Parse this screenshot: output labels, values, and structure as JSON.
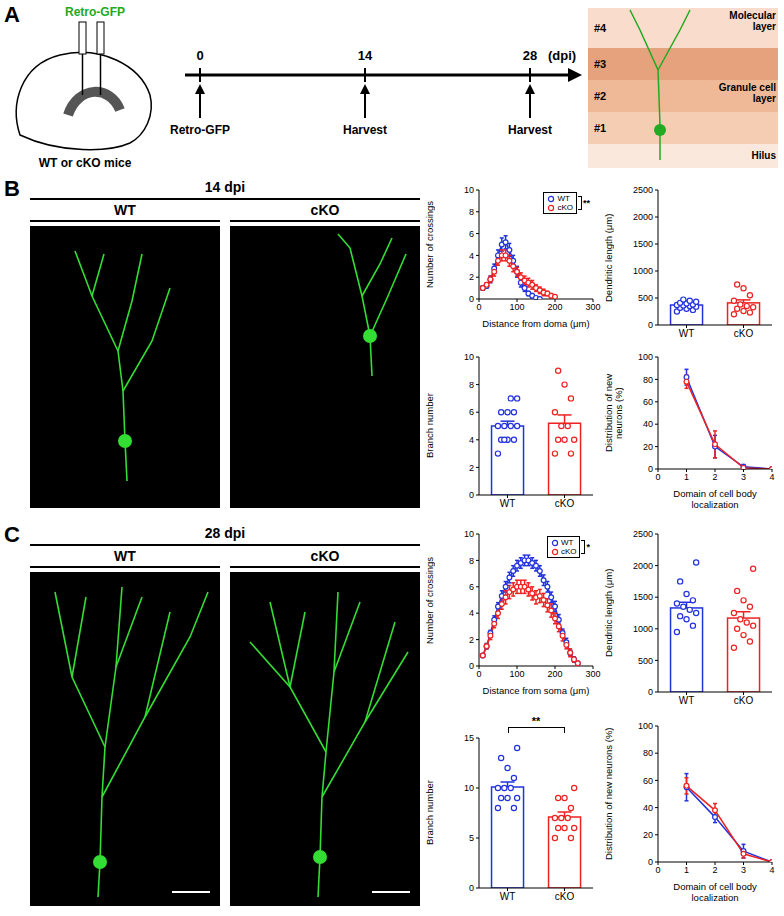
{
  "chart_data": [
    {
      "type": "line",
      "x_label": "Distance from doma (μm)",
      "y_label": "Number of crossings",
      "x": [
        10,
        20,
        30,
        40,
        50,
        60,
        70,
        80,
        90,
        100,
        110,
        120,
        130,
        140,
        150,
        160,
        170,
        180,
        190,
        200
      ],
      "xlim": [
        0,
        300
      ],
      "xticks": [
        0,
        100,
        200,
        300
      ],
      "ylim": [
        0,
        10
      ],
      "yticks": [
        0,
        2,
        4,
        6,
        8,
        10
      ],
      "legend": "top-right",
      "significance": "**",
      "series": [
        {
          "name": "WT",
          "color": "#2233dd",
          "marker": "circle",
          "values": [
            1,
            1.2,
            1.8,
            2.8,
            4,
            5,
            5.2,
            4.5,
            3.5,
            2.5,
            1.5,
            1,
            0.5,
            0.3,
            0.1,
            0,
            null,
            null,
            null,
            null
          ],
          "errors": [
            0.2,
            0.2,
            0.3,
            0.4,
            0.5,
            0.6,
            0.6,
            0.6,
            0.5,
            0.5,
            0.4,
            0.3,
            0.2,
            0.2,
            0.1,
            0,
            null,
            null,
            null,
            null
          ]
        },
        {
          "name": "cKO",
          "color": "#ee2222",
          "marker": "circle",
          "values": [
            1,
            1.3,
            1.8,
            2.5,
            3.5,
            4,
            4,
            3.5,
            3,
            2.5,
            2,
            1.7,
            1.5,
            1.3,
            1,
            0.8,
            0.6,
            0.5,
            0.3,
            0.2
          ],
          "errors": [
            0.2,
            0.2,
            0.3,
            0.4,
            0.4,
            0.5,
            0.5,
            0.5,
            0.5,
            0.4,
            0.4,
            0.4,
            0.4,
            0.4,
            0.3,
            0.3,
            0.3,
            0.2,
            0.2,
            0.1
          ]
        }
      ]
    },
    {
      "type": "bar",
      "y_label": "Dendritic length (μm)",
      "categories": [
        "WT",
        "cKO"
      ],
      "values": [
        370,
        410
      ],
      "errors": [
        25,
        55
      ],
      "points": [
        [
          250,
          280,
          300,
          320,
          340,
          350,
          360,
          370,
          380,
          400,
          410,
          430,
          450,
          470
        ],
        [
          200,
          230,
          260,
          300,
          330,
          350,
          380,
          450,
          550,
          680,
          750
        ]
      ],
      "colors": [
        "#2233dd",
        "#ee2222"
      ],
      "ylim": [
        0,
        2500
      ],
      "yticks": [
        0,
        500,
        1000,
        1500,
        2000,
        2500
      ]
    },
    {
      "type": "bar",
      "y_label": "Branch number",
      "categories": [
        "WT",
        "cKO"
      ],
      "values": [
        5,
        5.2
      ],
      "errors": [
        0.35,
        0.6
      ],
      "points": [
        [
          3,
          4,
          4,
          4,
          5,
          5,
          5,
          5,
          6,
          6,
          6,
          7,
          7,
          4
        ],
        [
          3,
          3,
          4,
          4,
          4,
          5,
          5,
          6,
          7,
          8,
          9
        ]
      ],
      "colors": [
        "#2233dd",
        "#ee2222"
      ],
      "ylim": [
        0,
        10
      ],
      "yticks": [
        0,
        2,
        4,
        6,
        8,
        10
      ]
    },
    {
      "type": "line",
      "x_label": "Domain of cell body localization",
      "y_label": "Distribution of new neurons (%)",
      "x": [
        1,
        2,
        3,
        4
      ],
      "xlim": [
        0,
        4
      ],
      "xticks": [
        0,
        1,
        2,
        3,
        4
      ],
      "ylim": [
        0,
        100
      ],
      "yticks": [
        0,
        20,
        40,
        60,
        80,
        100
      ],
      "series": [
        {
          "name": "WT",
          "color": "#2233dd",
          "marker": "circle",
          "values": [
            82,
            20,
            2,
            0
          ],
          "errors": [
            7,
            10,
            2,
            0
          ]
        },
        {
          "name": "cKO",
          "color": "#ee2222",
          "marker": "circle",
          "values": [
            78,
            22,
            1,
            0
          ],
          "errors": [
            6,
            12,
            1,
            0
          ]
        }
      ]
    },
    {
      "type": "line",
      "x_label": "Distance from soma (μm)",
      "y_label": "Number of crossings",
      "x": [
        10,
        20,
        30,
        40,
        50,
        60,
        70,
        80,
        90,
        100,
        110,
        120,
        130,
        140,
        150,
        160,
        170,
        180,
        190,
        200,
        210,
        220,
        230,
        240,
        250,
        260
      ],
      "xlim": [
        0,
        300
      ],
      "xticks": [
        0,
        100,
        200,
        300
      ],
      "ylim": [
        0,
        10
      ],
      "yticks": [
        0,
        2,
        4,
        6,
        8,
        10
      ],
      "legend": "top-right",
      "significance": "*",
      "series": [
        {
          "name": "WT",
          "color": "#2233dd",
          "marker": "circle",
          "values": [
            0.8,
            1.5,
            2.5,
            3.5,
            4.5,
            5.3,
            6,
            6.7,
            7.2,
            7.6,
            7.8,
            8,
            8,
            7.8,
            7.6,
            7.2,
            6.5,
            6,
            5.2,
            4.5,
            3.5,
            2.5,
            1.8,
            1,
            0.5,
            0.2
          ],
          "errors": [
            0.1,
            0.2,
            0.2,
            0.3,
            0.3,
            0.4,
            0.4,
            0.4,
            0.4,
            0.4,
            0.4,
            0.4,
            0.4,
            0.4,
            0.4,
            0.4,
            0.4,
            0.4,
            0.4,
            0.4,
            0.4,
            0.3,
            0.3,
            0.2,
            0.2,
            0.1
          ]
        },
        {
          "name": "cKO",
          "color": "#ee2222",
          "marker": "circle",
          "values": [
            0.8,
            1.5,
            2.3,
            3.2,
            4,
            4.7,
            5.2,
            5.6,
            5.8,
            6,
            6,
            6,
            5.8,
            5.5,
            5.2,
            5.3,
            5,
            4.6,
            4.2,
            3.6,
            3,
            2.3,
            1.6,
            1,
            0.5,
            0.2
          ],
          "errors": [
            0.1,
            0.2,
            0.3,
            0.3,
            0.4,
            0.4,
            0.5,
            0.5,
            0.5,
            0.5,
            0.5,
            0.5,
            0.5,
            0.5,
            0.5,
            0.5,
            0.5,
            0.5,
            0.5,
            0.4,
            0.4,
            0.4,
            0.3,
            0.3,
            0.2,
            0.1
          ]
        }
      ]
    },
    {
      "type": "bar",
      "y_label": "Dendritic length (μm)",
      "categories": [
        "WT",
        "cKO"
      ],
      "values": [
        1330,
        1170
      ],
      "errors": [
        90,
        100
      ],
      "points": [
        [
          950,
          1050,
          1150,
          1200,
          1250,
          1300,
          1350,
          1400,
          1450,
          1550,
          1750,
          2050
        ],
        [
          700,
          800,
          900,
          1000,
          1050,
          1100,
          1150,
          1250,
          1350,
          1450,
          1600,
          1950
        ]
      ],
      "colors": [
        "#2233dd",
        "#ee2222"
      ],
      "ylim": [
        0,
        2500
      ],
      "yticks": [
        0,
        500,
        1000,
        1500,
        2000,
        2500
      ]
    },
    {
      "type": "bar",
      "y_label": "Branch number",
      "categories": [
        "WT",
        "cKO"
      ],
      "values": [
        10.1,
        7.1
      ],
      "errors": [
        0.5,
        0.5
      ],
      "points": [
        [
          8,
          8,
          9,
          9,
          9,
          10,
          10,
          10,
          11,
          12,
          13,
          14
        ],
        [
          5,
          5,
          6,
          6,
          6,
          7,
          7,
          7,
          8,
          9,
          9,
          10
        ]
      ],
      "colors": [
        "#2233dd",
        "#ee2222"
      ],
      "ylim": [
        0,
        15
      ],
      "yticks": [
        0,
        5,
        10,
        15
      ],
      "significance": "**"
    },
    {
      "type": "line",
      "x_label": "Domain of cell body localization",
      "y_label": "Distribution of new neurons (%)",
      "x": [
        1,
        2,
        3,
        4
      ],
      "xlim": [
        0,
        4
      ],
      "xticks": [
        0,
        1,
        2,
        3,
        4
      ],
      "ylim": [
        0,
        100
      ],
      "yticks": [
        0,
        20,
        40,
        60,
        80,
        100
      ],
      "series": [
        {
          "name": "WT",
          "color": "#2233dd",
          "marker": "circle",
          "values": [
            55,
            33,
            8,
            0
          ],
          "errors": [
            10,
            4,
            5,
            0
          ]
        },
        {
          "name": "cKO",
          "color": "#ee2222",
          "marker": "circle",
          "values": [
            56,
            38,
            6,
            0
          ],
          "errors": [
            6,
            5,
            3,
            0
          ]
        }
      ]
    }
  ],
  "diagram": {
    "panel_a": {
      "letter": "A",
      "injection": "Retro-GFP",
      "mice": "WT or cKO mice",
      "timeline": {
        "ticks": [
          0,
          14,
          28
        ],
        "unit": "(dpi)",
        "events": [
          {
            "day": 0,
            "label": "Retro-GFP"
          },
          {
            "day": 14,
            "label": "Harvest"
          },
          {
            "day": 28,
            "label": "Harvest"
          }
        ]
      },
      "layers": {
        "domains": [
          "#4",
          "#3",
          "#2",
          "#1"
        ],
        "molecular": "Molecular layer",
        "granule": "Granule cell layer",
        "hilus": "Hilus"
      }
    },
    "panel_b": {
      "letter": "B",
      "title": "14 dpi",
      "images": [
        "WT",
        "cKO"
      ]
    },
    "panel_c": {
      "letter": "C",
      "title": "28 dpi",
      "images": [
        "WT",
        "cKO"
      ]
    }
  }
}
